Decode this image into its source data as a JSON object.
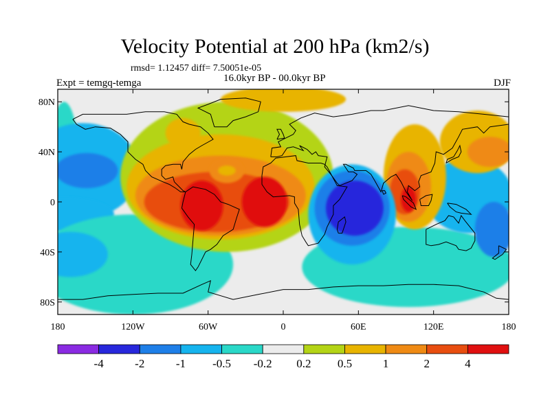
{
  "header": {
    "title": "Velocity Potential at 200 hPa (km2/s)",
    "stats": "rmsd= 1.12457 diff= 7.50051e-05",
    "left_label": "Expt = temgq-temga",
    "center_label": "16.0kyr BP - 00.0kyr BP",
    "right_label": "DJF"
  },
  "chart_data": {
    "type": "heatmap",
    "title": "Velocity Potential at 200 hPa (km2/s)",
    "xlabel": "",
    "ylabel": "",
    "xlim": [
      -180,
      180
    ],
    "ylim": [
      -90,
      90
    ],
    "x_ticks": [
      {
        "value": -180,
        "label": "180"
      },
      {
        "value": -120,
        "label": "120W"
      },
      {
        "value": -60,
        "label": "60W"
      },
      {
        "value": 0,
        "label": "0"
      },
      {
        "value": 60,
        "label": "60E"
      },
      {
        "value": 120,
        "label": "120E"
      },
      {
        "value": 180,
        "label": "180"
      }
    ],
    "y_ticks": [
      {
        "value": 80,
        "label": "80N"
      },
      {
        "value": 40,
        "label": "40N"
      },
      {
        "value": 0,
        "label": "0"
      },
      {
        "value": -40,
        "label": "40S"
      },
      {
        "value": -80,
        "label": "80S"
      }
    ],
    "colorbar": {
      "colors": [
        "#8a2be2",
        "#2828dc",
        "#1e7fe8",
        "#16b4ee",
        "#2ad8c8",
        "#ececec",
        "#b4d416",
        "#e8b400",
        "#ef8a14",
        "#e84e10",
        "#e01010"
      ],
      "labels": [
        "-4",
        "-2",
        "-1",
        "-0.5",
        "-0.2",
        "0.2",
        "0.5",
        "1",
        "2",
        "4"
      ]
    },
    "regions": [
      {
        "level": -0.2,
        "lon": -175,
        "lat": 30,
        "dlon": 12,
        "dlat": 50
      },
      {
        "level": -0.5,
        "lon": -160,
        "lat": 25,
        "dlon": 45,
        "dlat": 38
      },
      {
        "level": -1,
        "lon": -157,
        "lat": 25,
        "dlon": 25,
        "dlat": 14
      },
      {
        "level": -0.5,
        "lon": -175,
        "lat": -10,
        "dlon": 40,
        "dlat": 14
      },
      {
        "level": -0.2,
        "lon": -120,
        "lat": -50,
        "dlon": 80,
        "dlat": 40
      },
      {
        "level": -0.5,
        "lon": -170,
        "lat": -42,
        "dlon": 30,
        "dlat": 18
      },
      {
        "level": -0.2,
        "lon": 100,
        "lat": -52,
        "dlon": 85,
        "dlat": 32
      },
      {
        "level": -0.5,
        "lon": 148,
        "lat": 5,
        "dlon": 35,
        "dlat": 30
      },
      {
        "level": -1,
        "lon": 168,
        "lat": -22,
        "dlon": 15,
        "dlat": 22
      },
      {
        "level": 0.2,
        "lon": -45,
        "lat": 20,
        "dlon": 85,
        "dlat": 60
      },
      {
        "level": 0.5,
        "lon": -50,
        "lat": 12,
        "dlon": 75,
        "dlat": 42
      },
      {
        "level": 1,
        "lon": -50,
        "lat": 5,
        "dlon": 68,
        "dlat": 32
      },
      {
        "level": 2,
        "lon": -53,
        "lat": 0,
        "dlon": 58,
        "dlat": 24
      },
      {
        "level": 4,
        "lon": -65,
        "lat": -3,
        "dlon": 17,
        "dlat": 20
      },
      {
        "level": 4,
        "lon": -15,
        "lat": 0,
        "dlon": 18,
        "dlat": 20
      },
      {
        "level": 1,
        "lon": -45,
        "lat": 25,
        "dlon": 14,
        "dlat": 10
      },
      {
        "level": 0.5,
        "lon": -45,
        "lat": 25,
        "dlon": 7,
        "dlat": 4
      },
      {
        "level": 0.5,
        "lon": 0,
        "lat": 82,
        "dlon": 50,
        "dlat": 10
      },
      {
        "level": 0.5,
        "lon": -80,
        "lat": 55,
        "dlon": 14,
        "dlat": 12
      },
      {
        "level": 0.5,
        "lon": 155,
        "lat": 48,
        "dlon": 30,
        "dlat": 25
      },
      {
        "level": 1,
        "lon": 165,
        "lat": 40,
        "dlon": 18,
        "dlat": 12
      },
      {
        "level": 0.5,
        "lon": 105,
        "lat": 20,
        "dlon": 25,
        "dlat": 42
      },
      {
        "level": 1,
        "lon": 100,
        "lat": 12,
        "dlon": 18,
        "dlat": 28
      },
      {
        "level": 2,
        "lon": 97,
        "lat": 8,
        "dlon": 12,
        "dlat": 18
      },
      {
        "level": 4,
        "lon": 100,
        "lat": 2,
        "dlon": 6,
        "dlat": 10
      },
      {
        "level": -0.5,
        "lon": 55,
        "lat": -10,
        "dlon": 35,
        "dlat": 40
      },
      {
        "level": -1,
        "lon": 55,
        "lat": -5,
        "dlon": 30,
        "dlat": 30
      },
      {
        "level": -2,
        "lon": 57,
        "lat": -5,
        "dlon": 23,
        "dlat": 22
      }
    ]
  }
}
